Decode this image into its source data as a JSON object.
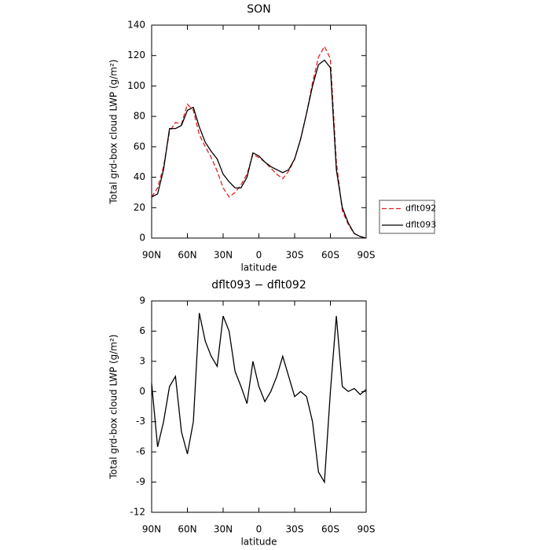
{
  "chart_data": [
    {
      "type": "line",
      "title": "SON",
      "xlabel": "latitude",
      "ylabel": "Total grd-box cloud LWP (g/m²)",
      "x": [
        90,
        85,
        80,
        75,
        70,
        65,
        60,
        55,
        50,
        45,
        40,
        35,
        30,
        25,
        20,
        15,
        10,
        5,
        0,
        -5,
        -10,
        -15,
        -20,
        -25,
        -30,
        -35,
        -40,
        -45,
        -50,
        -55,
        -60,
        -65,
        -70,
        -75,
        -80,
        -85,
        -90
      ],
      "series": [
        {
          "name": "dflt092",
          "color": "#e02020",
          "dash": true,
          "values": [
            27,
            33,
            47,
            70,
            76,
            75,
            88,
            84,
            68,
            60,
            53,
            44,
            33,
            27,
            30,
            35,
            42,
            55,
            53,
            50,
            46,
            42,
            39,
            44,
            52,
            65,
            82,
            102,
            119,
            126,
            118,
            50,
            18,
            9,
            3,
            1,
            0
          ]
        },
        {
          "name": "dflt093",
          "color": "#000000",
          "dash": false,
          "values": [
            27,
            29,
            45,
            72,
            72,
            74,
            84,
            86,
            73,
            63,
            57,
            52,
            42,
            37,
            33,
            33,
            40,
            56,
            54,
            50,
            47,
            45,
            43,
            45,
            52,
            65,
            82,
            100,
            114,
            117,
            112,
            45,
            20,
            10,
            3,
            1,
            0
          ]
        }
      ],
      "xlim": [
        90,
        -90
      ],
      "xticks": [
        {
          "value": 90,
          "label": "90N"
        },
        {
          "value": 60,
          "label": "60N"
        },
        {
          "value": 30,
          "label": "30N"
        },
        0,
        {
          "value": -30,
          "label": "30S"
        },
        {
          "value": -60,
          "label": "60S"
        },
        {
          "value": -90,
          "label": "90S"
        }
      ],
      "ylim": [
        0,
        140
      ],
      "yticks": [
        0,
        20,
        40,
        60,
        80,
        100,
        120,
        140
      ],
      "legend": "right"
    },
    {
      "type": "line",
      "title": "dflt093 − dflt092",
      "xlabel": "latitude",
      "ylabel": "Total grd-box cloud LWP (g/m²)",
      "x": [
        90,
        85,
        80,
        75,
        70,
        65,
        60,
        55,
        50,
        45,
        40,
        35,
        30,
        25,
        20,
        15,
        10,
        5,
        0,
        -5,
        -10,
        -15,
        -20,
        -25,
        -30,
        -35,
        -40,
        -45,
        -50,
        -55,
        -60,
        -65,
        -70,
        -75,
        -80,
        -85,
        -90
      ],
      "values": [
        0.8,
        -5.5,
        -3,
        0.5,
        1.5,
        -4,
        -6.2,
        -3,
        7.8,
        5,
        3.5,
        2.5,
        7.5,
        6,
        2,
        0.5,
        -1.2,
        3,
        0.5,
        -1,
        0,
        1.5,
        3.5,
        1.5,
        -0.5,
        0,
        -0.5,
        -3,
        -8,
        -9,
        0,
        7.5,
        0.5,
        0,
        0.3,
        -0.3,
        0.2
      ],
      "color": "#000000",
      "xlim": [
        90,
        -90
      ],
      "xticks": [
        {
          "value": 90,
          "label": "90N"
        },
        {
          "value": 60,
          "label": "60N"
        },
        {
          "value": 30,
          "label": "30N"
        },
        0,
        {
          "value": -30,
          "label": "30S"
        },
        {
          "value": -60,
          "label": "60S"
        },
        {
          "value": -90,
          "label": "90S"
        }
      ],
      "ylim": [
        -12,
        9
      ],
      "yticks": [
        -12,
        -9,
        -6,
        -3,
        0,
        3,
        6,
        9
      ]
    }
  ]
}
